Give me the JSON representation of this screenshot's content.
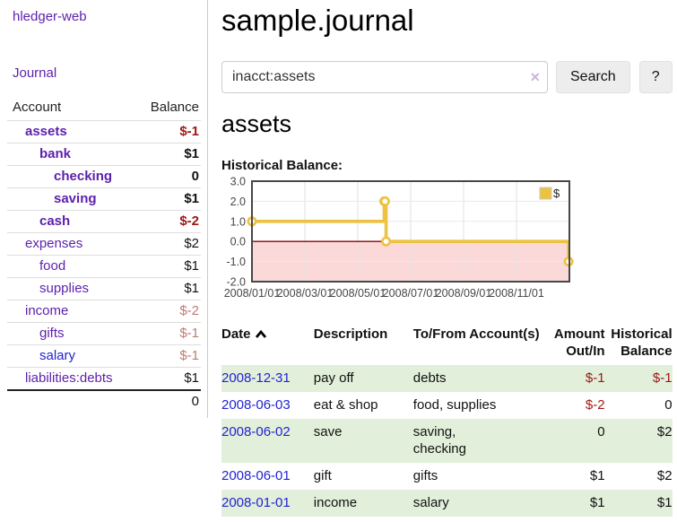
{
  "app": {
    "title": "hledger-web"
  },
  "nav": {
    "journal": "Journal"
  },
  "sidebar": {
    "header": {
      "account": "Account",
      "balance": "Balance"
    },
    "accounts": [
      {
        "name": "assets",
        "balance": "$-1"
      },
      {
        "name": "bank",
        "balance": "$1"
      },
      {
        "name": "checking",
        "balance": "0"
      },
      {
        "name": "saving",
        "balance": "$1"
      },
      {
        "name": "cash",
        "balance": "$-2"
      },
      {
        "name": "expenses",
        "balance": "$2"
      },
      {
        "name": "food",
        "balance": "$1"
      },
      {
        "name": "supplies",
        "balance": "$1"
      },
      {
        "name": "income",
        "balance": "$-2"
      },
      {
        "name": "gifts",
        "balance": "$-1"
      },
      {
        "name": "salary",
        "balance": "$-1"
      },
      {
        "name": "liabilities:debts",
        "balance": "$1"
      }
    ],
    "total": "0"
  },
  "header": {
    "title": "sample.journal"
  },
  "search": {
    "query": "inacct:assets",
    "clear_icon": "×",
    "search_button": "Search",
    "help_button": "?"
  },
  "account_view": {
    "heading": "assets",
    "section_label": "Historical Balance:"
  },
  "chart_data": {
    "type": "line",
    "title": "Historical Balance",
    "legend": {
      "label": "$",
      "position": "top-right"
    },
    "series": [
      {
        "name": "$",
        "color": "#edc240",
        "steps": true,
        "points": [
          {
            "date": "2008-01-01",
            "x": 0,
            "y": 1
          },
          {
            "date": "2008-06-01",
            "x": 5.0,
            "y": 2
          },
          {
            "date": "2008-06-02",
            "x": 5.03,
            "y": 2
          },
          {
            "date": "2008-06-03",
            "x": 5.07,
            "y": 0
          },
          {
            "date": "2008-12-31",
            "x": 11.97,
            "y": -1
          }
        ]
      }
    ],
    "x_ticks": [
      {
        "pos": 0,
        "label": "2008/01/01"
      },
      {
        "pos": 2,
        "label": "2008/03/01"
      },
      {
        "pos": 4,
        "label": "2008/05/01"
      },
      {
        "pos": 6,
        "label": "2008/07/01"
      },
      {
        "pos": 8,
        "label": "2008/09/01"
      },
      {
        "pos": 10,
        "label": "2008/11/01"
      }
    ],
    "y_ticks": [
      "3.0",
      "2.0",
      "1.0",
      "0.0",
      "-1.0",
      "-2.0"
    ],
    "xlim": [
      0,
      12
    ],
    "ylim": [
      -2,
      3
    ],
    "grid": true,
    "negative_region_color": "#fbd9d9",
    "zero_line_color": "#8b0000",
    "border_color": "#474747"
  },
  "register": {
    "headers": {
      "date": "Date",
      "description": "Description",
      "accounts": "To/From Account(s)",
      "amount": "Amount Out/In",
      "balance": "Historical Balance"
    },
    "rows": [
      {
        "date": "2008-12-31",
        "description": "pay off",
        "accounts": "debts",
        "amount": "$-1",
        "balance": "$-1"
      },
      {
        "date": "2008-06-03",
        "description": "eat & shop",
        "accounts": "food, supplies",
        "amount": "$-2",
        "balance": "0"
      },
      {
        "date": "2008-06-02",
        "description": "save",
        "accounts": "saving,\nchecking",
        "amount": "0",
        "balance": "$2"
      },
      {
        "date": "2008-06-01",
        "description": "gift",
        "accounts": "gifts",
        "amount": "$1",
        "balance": "$2"
      },
      {
        "date": "2008-01-01",
        "description": "income",
        "accounts": "salary",
        "amount": "$1",
        "balance": "$1"
      }
    ]
  }
}
